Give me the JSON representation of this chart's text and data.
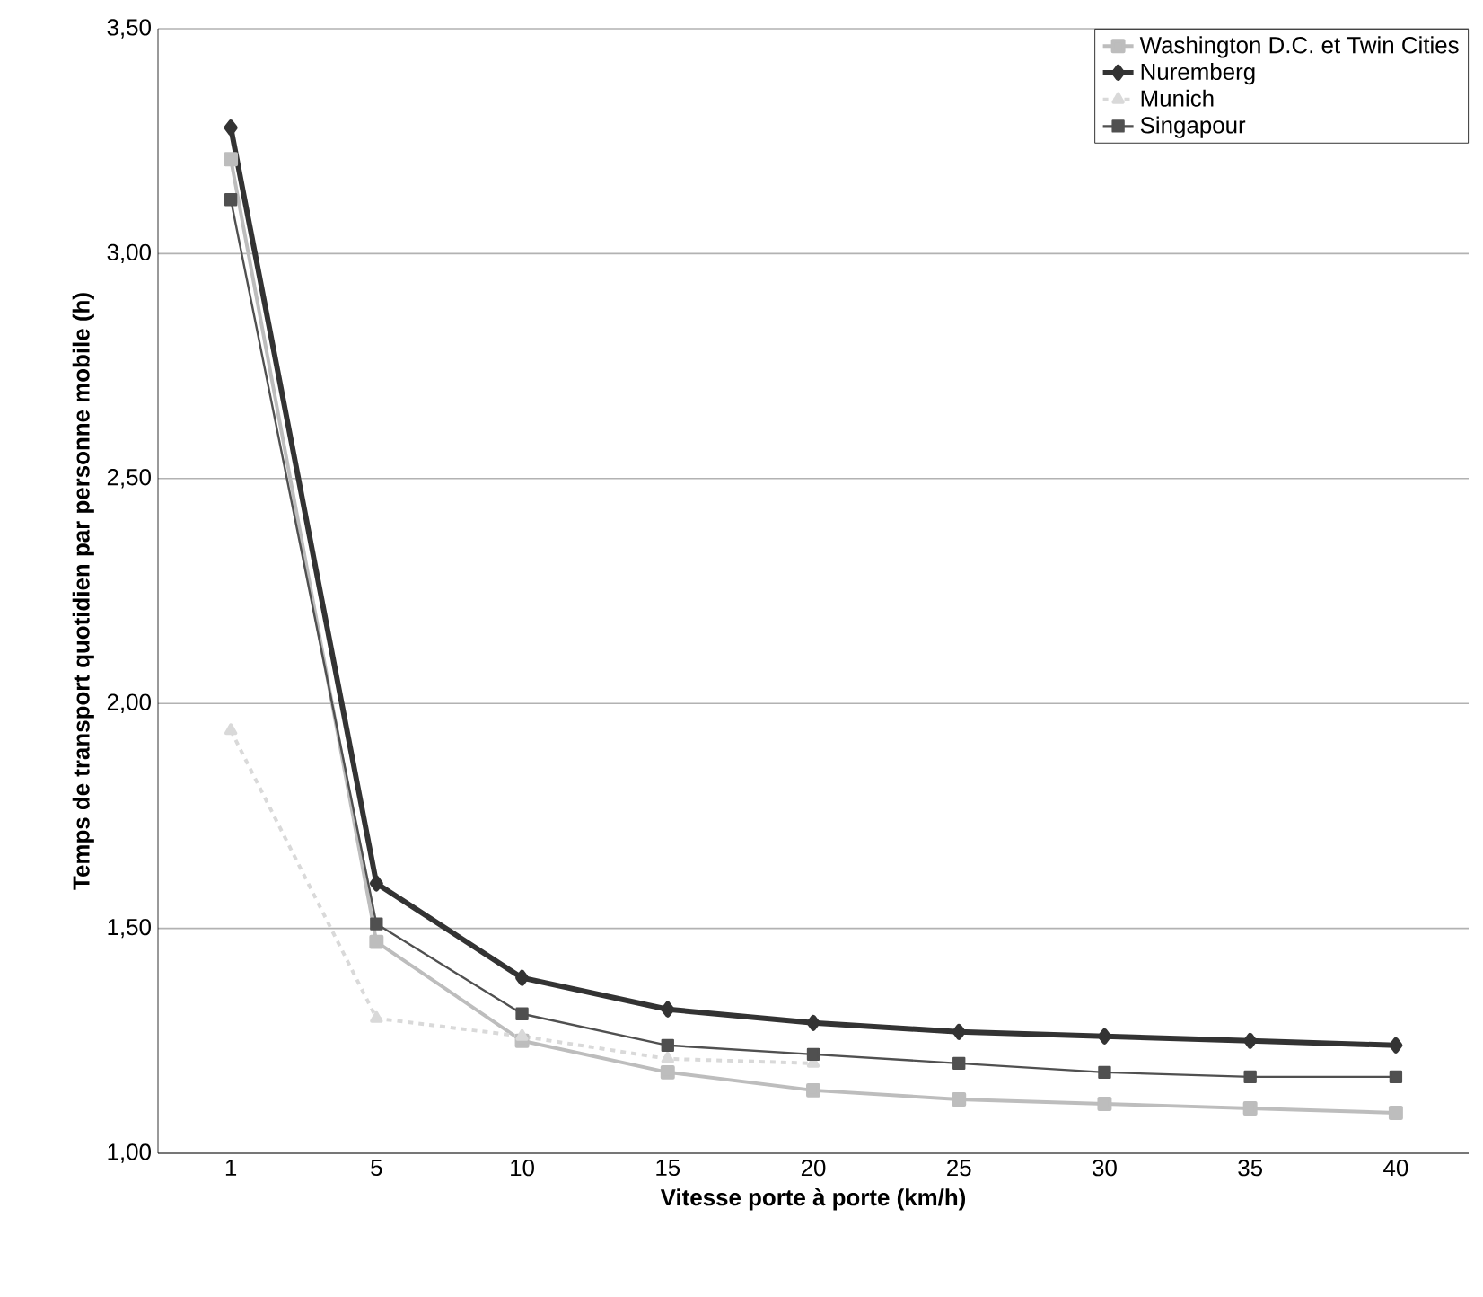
{
  "chart_data": {
    "type": "line",
    "xlabel": "Vitesse porte à porte (km/h)",
    "ylabel": "Temps de transport quotidien par personne mobile (h)",
    "categories": [
      "1",
      "5",
      "10",
      "15",
      "20",
      "25",
      "30",
      "35",
      "40"
    ],
    "ylim": [
      1.0,
      3.5
    ],
    "yticks": [
      {
        "value": 1.0,
        "label": "1,00"
      },
      {
        "value": 1.5,
        "label": "1,50"
      },
      {
        "value": 2.0,
        "label": "2,00"
      },
      {
        "value": 2.5,
        "label": "2,50"
      },
      {
        "value": 3.0,
        "label": "3,00"
      },
      {
        "value": 3.5,
        "label": "3,50"
      }
    ],
    "grid": "y",
    "legend": "top right",
    "series": [
      {
        "name": "Washington D.C. et Twin Cities",
        "color": "#bdbdbd",
        "marker": "square",
        "line_style": "solid",
        "values": [
          3.21,
          1.47,
          1.25,
          1.18,
          1.14,
          1.12,
          1.11,
          1.1,
          1.09
        ]
      },
      {
        "name": "Nuremberg",
        "color": "#333333",
        "marker": "diamond",
        "line_style": "solid",
        "values": [
          3.28,
          1.6,
          1.39,
          1.32,
          1.29,
          1.27,
          1.26,
          1.25,
          1.24
        ]
      },
      {
        "name": "Munich",
        "color": "#d9d9d9",
        "marker": "triangle",
        "line_style": "dashed",
        "values": [
          1.94,
          1.3,
          1.26,
          1.21,
          1.2,
          null,
          null,
          null,
          null
        ]
      },
      {
        "name": "Singapour",
        "color": "#505050",
        "marker": "square",
        "line_style": "solid",
        "values": [
          3.12,
          1.51,
          1.31,
          1.24,
          1.22,
          1.2,
          1.18,
          1.17,
          1.17
        ]
      }
    ]
  }
}
